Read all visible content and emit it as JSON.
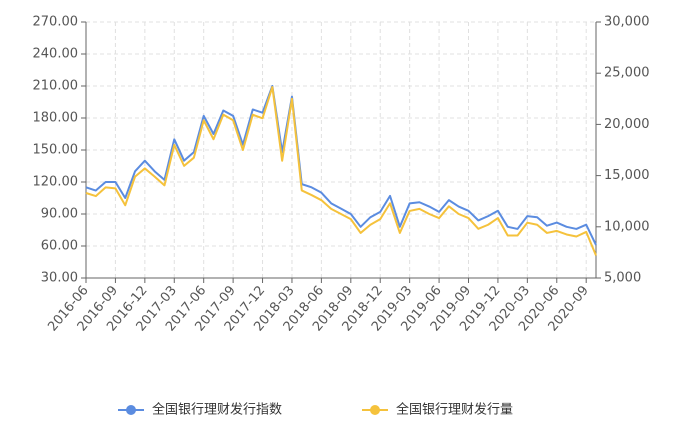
{
  "chart_data": {
    "type": "line",
    "categories": [
      "2016-06",
      null,
      null,
      "2016-09",
      null,
      null,
      "2016-12",
      null,
      null,
      "2017-03",
      null,
      null,
      "2017-06",
      null,
      null,
      "2017-09",
      null,
      null,
      "2017-12",
      null,
      null,
      "2018-03",
      null,
      null,
      "2018-06",
      null,
      null,
      "2018-09",
      null,
      null,
      "2018-12",
      null,
      null,
      "2019-03",
      null,
      null,
      "2019-06",
      null,
      null,
      "2019-09",
      null,
      null,
      "2019-12",
      null,
      null,
      "2020-03",
      null,
      null,
      "2020-06",
      null,
      null,
      "2020-09",
      null
    ],
    "series": [
      {
        "name": "全国银行理财发行指数",
        "color": "#5b8ce0",
        "values": [
          115,
          112,
          120,
          120,
          105,
          130,
          140,
          130,
          122,
          160,
          140,
          148,
          182,
          165,
          187,
          182,
          155,
          188,
          185,
          210,
          148,
          200,
          118,
          115,
          110,
          100,
          95,
          90,
          78,
          87,
          92,
          107,
          78,
          100,
          101,
          97,
          92,
          103,
          97,
          93,
          84,
          88,
          93,
          78,
          76,
          88,
          87,
          79,
          82,
          78,
          76,
          80,
          61
        ]
      },
      {
        "name": "全国银行理财发行量",
        "color": "#f5c23c",
        "axis": "y2",
        "values": [
          13300,
          13000,
          13850,
          13750,
          12100,
          14900,
          15700,
          14900,
          14050,
          18000,
          15950,
          16750,
          20400,
          18550,
          20950,
          20400,
          17500,
          20950,
          20600,
          23650,
          16450,
          22500,
          13550,
          13100,
          12600,
          11750,
          11250,
          10750,
          9400,
          10200,
          10750,
          12300,
          9400,
          11550,
          11750,
          11250,
          10850,
          12000,
          11250,
          10850,
          9800,
          10200,
          10850,
          9150,
          9150,
          10400,
          10200,
          9400,
          9600,
          9250,
          9050,
          9500,
          7200
        ]
      }
    ],
    "ylim": [
      30,
      270
    ],
    "yticks": [
      {
        "value": 30,
        "label": "30.00"
      },
      {
        "value": 60,
        "label": "60.00"
      },
      {
        "value": 90,
        "label": "90.00"
      },
      {
        "value": 120,
        "label": "120.00"
      },
      {
        "value": 150,
        "label": "150.00"
      },
      {
        "value": 180,
        "label": "180.00"
      },
      {
        "value": 210,
        "label": "210.00"
      },
      {
        "value": 240,
        "label": "240.00"
      },
      {
        "value": 270,
        "label": "270.00"
      }
    ],
    "y2lim": [
      5000,
      30000
    ],
    "y2ticks": [
      {
        "value": 5000,
        "label": "5,000"
      },
      {
        "value": 10000,
        "label": "10,000"
      },
      {
        "value": 15000,
        "label": "15,000"
      },
      {
        "value": 20000,
        "label": "20,000"
      },
      {
        "value": 25000,
        "label": "25,000"
      },
      {
        "value": 30000,
        "label": "30,000"
      }
    ],
    "grid": true
  }
}
